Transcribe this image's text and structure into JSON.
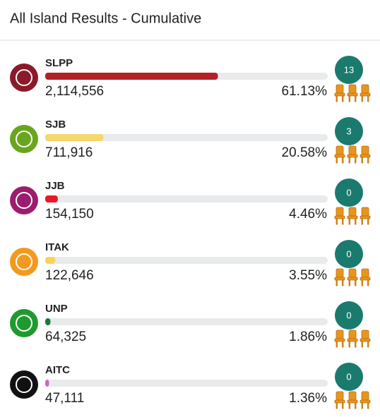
{
  "header": {
    "title": "All Island Results - Cumulative"
  },
  "parties": [
    {
      "name": "SLPP",
      "votes": "2,114,556",
      "percent": {
        "value": 61.13,
        "label": "61.13%"
      },
      "seats": 13,
      "color": "#b22028",
      "emblem_color": "#8b1a2b"
    },
    {
      "name": "SJB",
      "votes": "711,916",
      "percent": {
        "value": 20.58,
        "label": "20.58%"
      },
      "seats": 3,
      "color": "#f5d76e",
      "emblem_color": "#6aa51e"
    },
    {
      "name": "JJB",
      "votes": "154,150",
      "percent": {
        "value": 4.46,
        "label": "4.46%"
      },
      "seats": 0,
      "color": "#e8192c",
      "emblem_color": "#9c1d6e"
    },
    {
      "name": "ITAK",
      "votes": "122,646",
      "percent": {
        "value": 3.55,
        "label": "3.55%"
      },
      "seats": 0,
      "color": "#f7d35c",
      "emblem_color": "#f39a1e"
    },
    {
      "name": "UNP",
      "votes": "64,325",
      "percent": {
        "value": 1.86,
        "label": "1.86%"
      },
      "seats": 0,
      "color": "#1a7a3c",
      "emblem_color": "#1f9a2e"
    },
    {
      "name": "AITC",
      "votes": "47,111",
      "percent": {
        "value": 1.36,
        "label": "1.36%"
      },
      "seats": 0,
      "color": "#d561c9",
      "emblem_color": "#111111"
    }
  ]
}
